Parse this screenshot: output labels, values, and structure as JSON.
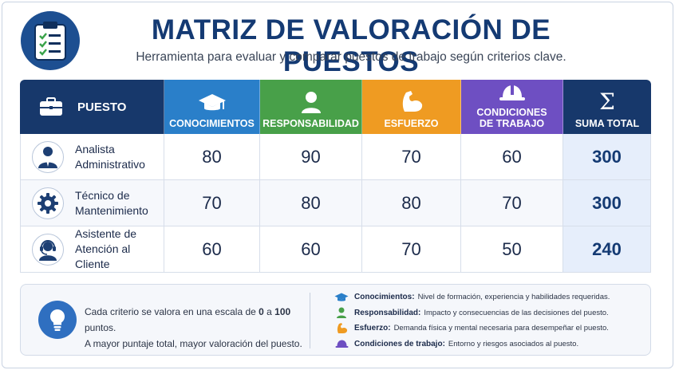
{
  "header": {
    "title": "MATRIZ DE VALORACIÓN DE PUESTOS",
    "subtitle": "Herramienta para evaluar y comparar puestos de trabajo según criterios clave.",
    "logo_icon": "clipboard-checklist-icon"
  },
  "table": {
    "headers": {
      "puesto": "PUESTO",
      "conocimientos": "CONOCIMIENTOS",
      "responsabilidad": "RESPONSABILIDAD",
      "esfuerzo": "ESFUERZO",
      "condiciones_1": "CONDICIONES",
      "condiciones_2": "DE TRABAJO",
      "sigma": "Σ",
      "suma": "SUMA TOTAL"
    },
    "header_colors": {
      "puesto": "#17386b",
      "conocimientos": "#2a7fc9",
      "responsabilidad": "#48a049",
      "esfuerzo": "#ef9b22",
      "condiciones": "#6e4fc2",
      "suma": "#17386b"
    },
    "rows": [
      {
        "name_1": "Analista",
        "name_2": "Administrativo",
        "icon": "businessman-icon",
        "conocimientos": "80",
        "responsabilidad": "90",
        "esfuerzo": "70",
        "condiciones": "60",
        "suma": "300"
      },
      {
        "name_1": "Técnico de",
        "name_2": "Mantenimiento",
        "icon": "gear-icon",
        "conocimientos": "70",
        "responsabilidad": "80",
        "esfuerzo": "80",
        "condiciones": "70",
        "suma": "300"
      },
      {
        "name_1": "Asistente de",
        "name_2": "Atención al Cliente",
        "icon": "headset-agent-icon",
        "conocimientos": "60",
        "responsabilidad": "60",
        "esfuerzo": "70",
        "condiciones": "50",
        "suma": "240"
      }
    ]
  },
  "footer": {
    "note_1a": "Cada criterio se valora en una escala de ",
    "note_1b": "0",
    "note_1c": " a ",
    "note_1d": "100",
    "note_1e": " puntos.",
    "note_2": "A mayor puntaje total, mayor valoración del puesto.",
    "legend": [
      {
        "term": "Conocimientos:",
        "desc": "Nivel de formación, experiencia y habilidades requeridas.",
        "icon": "graduation-cap-icon"
      },
      {
        "term": "Responsabilidad:",
        "desc": "Impacto y consecuencias de las decisiones del puesto.",
        "icon": "person-icon"
      },
      {
        "term": "Esfuerzo:",
        "desc": "Demanda física y mental necesaria para desempeñar el puesto.",
        "icon": "flexed-arm-icon"
      },
      {
        "term": "Condiciones de trabajo:",
        "desc": "Entorno y riesgos asociados al puesto.",
        "icon": "hard-hat-icon"
      }
    ]
  }
}
